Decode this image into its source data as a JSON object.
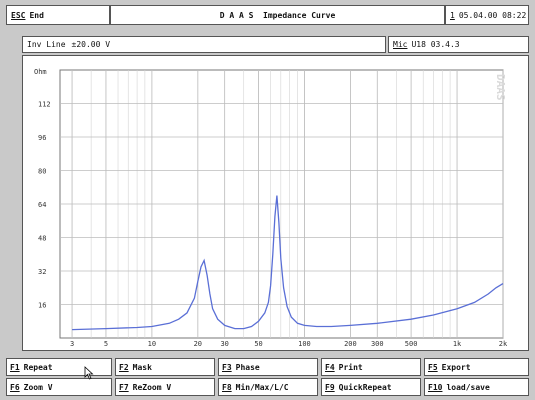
{
  "header": {
    "esc_key": "ESC",
    "esc_label": "End",
    "title": "D A A S  Impedance Curve",
    "datetime_key": "1",
    "datetime": "05.04.00 08:22"
  },
  "info": {
    "line_label": "Inv Line",
    "line_value": "±20.00 V",
    "mic_key": "Mic",
    "mic_value": "U18  03.4.3"
  },
  "chart_data": {
    "type": "line",
    "title": "",
    "xlabel": "",
    "ylabel": "Ohm",
    "watermark": "DAAS",
    "xscale": "log",
    "xlim": [
      2.5,
      2000
    ],
    "ylim": [
      0,
      128
    ],
    "grid": true,
    "y_ticks": [
      "16",
      "32",
      "48",
      "64",
      "80",
      "96",
      "112"
    ],
    "y_tick_values": [
      16,
      32,
      48,
      64,
      80,
      96,
      112
    ],
    "x_ticks": [
      "3",
      "5",
      "10",
      "20",
      "30",
      "50",
      "100",
      "200",
      "300",
      "500",
      "1k",
      "2k"
    ],
    "x_tick_values": [
      3,
      5,
      10,
      20,
      30,
      50,
      100,
      200,
      300,
      500,
      1000,
      2000
    ],
    "series": [
      {
        "color": "#5a6fd6",
        "x": [
          3,
          5,
          8,
          10,
          13,
          15,
          17,
          19,
          20,
          21,
          22,
          23,
          24,
          25,
          27,
          30,
          35,
          40,
          45,
          50,
          55,
          58,
          60,
          62,
          64,
          66,
          68,
          70,
          73,
          77,
          82,
          90,
          100,
          120,
          150,
          200,
          300,
          500,
          700,
          1000,
          1300,
          1600,
          1800,
          2000
        ],
        "y": [
          4,
          4.5,
          5,
          5.5,
          7,
          9,
          12,
          19,
          27,
          34,
          37,
          30,
          21,
          14,
          9,
          6,
          4.5,
          4.5,
          5.5,
          8,
          12,
          17,
          25,
          40,
          58,
          68,
          55,
          38,
          24,
          15,
          10,
          7,
          6,
          5.5,
          5.5,
          6,
          7,
          9,
          11,
          14,
          17,
          21,
          24,
          26
        ]
      }
    ]
  },
  "fkeys": {
    "f1": {
      "key": "F1",
      "label": "Repeat"
    },
    "f2": {
      "key": "F2",
      "label": "Mask"
    },
    "f3": {
      "key": "F3",
      "label": "Phase"
    },
    "f4": {
      "key": "F4",
      "label": "Print"
    },
    "f5": {
      "key": "F5",
      "label": "Export"
    },
    "f6": {
      "key": "F6",
      "label": "Zoom V"
    },
    "f7": {
      "key": "F7",
      "label": "ReZoom V"
    },
    "f8": {
      "key": "F8",
      "label": "Min/Max/L/C"
    },
    "f9": {
      "key": "F9",
      "label": "QuickRepeat"
    },
    "f10": {
      "key": "F10",
      "label": "load/save"
    }
  }
}
